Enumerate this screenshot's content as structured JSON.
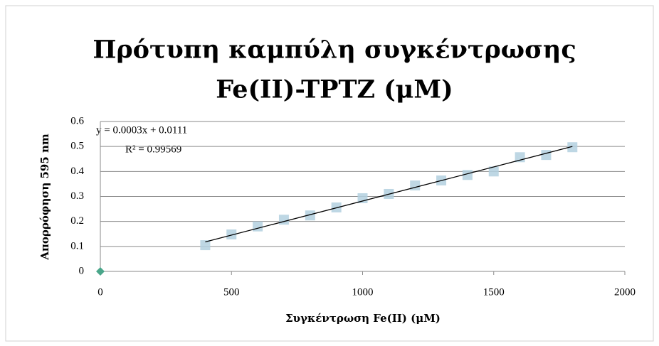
{
  "chart_data": {
    "type": "scatter",
    "title": [
      "Πρότυπη καμπύλη συγκέντρωσης",
      "Fe(II)-TPTZ (μM)"
    ],
    "xlabel": "Συγκέντρωση  Fe(II) (μΜ)",
    "ylabel": "Απορρόφηση 595 nm",
    "annotations": [
      "y = 0.0003x + 0.0111",
      "R² = 0.99569"
    ],
    "series": [
      {
        "marker": "diamond",
        "color": "#4aa68a",
        "x": [
          0
        ],
        "values": [
          0
        ]
      },
      {
        "marker": "square",
        "color": "#b3d0df",
        "x": [
          400,
          500,
          600,
          700,
          800,
          900,
          1000,
          1100,
          1200,
          1300,
          1400,
          1500,
          1600,
          1700,
          1800
        ],
        "values": [
          0.105,
          0.148,
          0.18,
          0.207,
          0.224,
          0.256,
          0.293,
          0.31,
          0.344,
          0.364,
          0.386,
          0.4,
          0.457,
          0.466,
          0.497
        ]
      }
    ],
    "trendline": {
      "color": "#000000",
      "x": [
        400,
        1800
      ],
      "values": [
        0.118,
        0.5
      ]
    },
    "xlim": [
      0,
      2000
    ],
    "xticks": [
      0,
      500,
      1000,
      1500,
      2000
    ],
    "ylim": [
      0,
      0.6
    ],
    "yticks": [
      0,
      0.1,
      0.2,
      0.3,
      0.4,
      0.5,
      0.6
    ],
    "grid": true
  }
}
